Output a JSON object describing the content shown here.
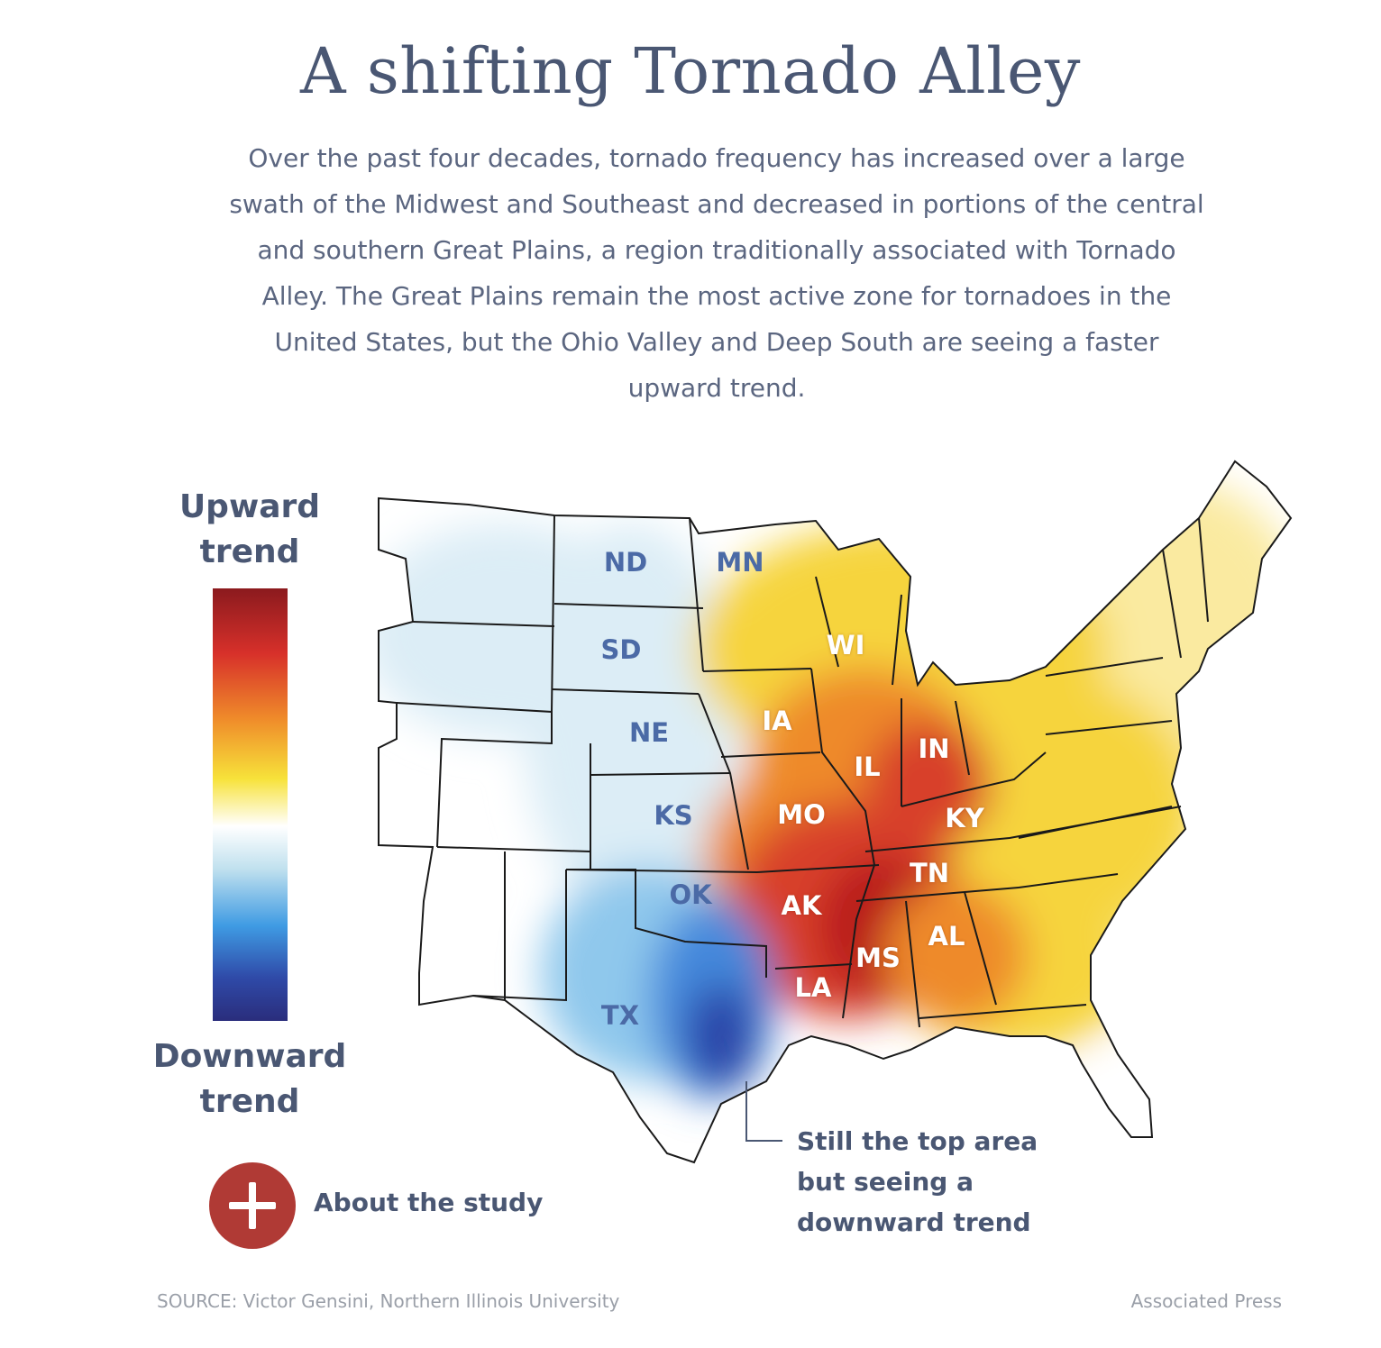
{
  "title": "A shifting Tornado Alley",
  "subtitle": "Over the past four decades, tornado frequency has increased over a large swath of the Midwest and Southeast and decreased in portions of the central and southern Great Plains, a region traditionally associated with Tornado Alley. The Great Plains remain the most active zone for tornadoes in the United States, but the Ohio Valley and Deep South are seeing a faster upward trend.",
  "legend": {
    "top_label_1": "Upward",
    "top_label_2": "trend",
    "bottom_label_1": "Downward",
    "bottom_label_2": "trend",
    "gradient_colors": [
      "#8b1a1e",
      "#d7302a",
      "#ef8a2a",
      "#f7e23a",
      "#ffffff",
      "#bfe0ee",
      "#3f9be3",
      "#2f4aa8",
      "#2a2d7c"
    ]
  },
  "map": {
    "colors": {
      "border": "#1a1a1a",
      "dark_red": "#b8161b",
      "red": "#d8402a",
      "orange": "#ee8a2c",
      "yellow": "#f6d43e",
      "pale_yellow": "#faeaa0",
      "white": "#ffffff",
      "pale_blue": "#dcedf6",
      "light_blue": "#8fc8ec",
      "blue": "#4489dc",
      "dark_blue": "#2c45a8"
    },
    "states": {
      "nd": "ND",
      "mn": "MN",
      "sd": "SD",
      "wi": "WI",
      "ne": "NE",
      "ia": "IA",
      "in": "IN",
      "il": "IL",
      "ks": "KS",
      "mo": "MO",
      "ky": "KY",
      "tn": "TN",
      "ok": "OK",
      "ak": "AK",
      "al": "AL",
      "ms": "MS",
      "la": "LA",
      "tx": "TX"
    }
  },
  "annotation": {
    "line1": "Still the top area",
    "line2": "but seeing a",
    "line3": "downward trend"
  },
  "about": {
    "label": "About the study",
    "icon": "plus-icon"
  },
  "footer": {
    "source": "SOURCE: Victor Gensini, Northern Illinois University",
    "credit": "Associated Press"
  }
}
